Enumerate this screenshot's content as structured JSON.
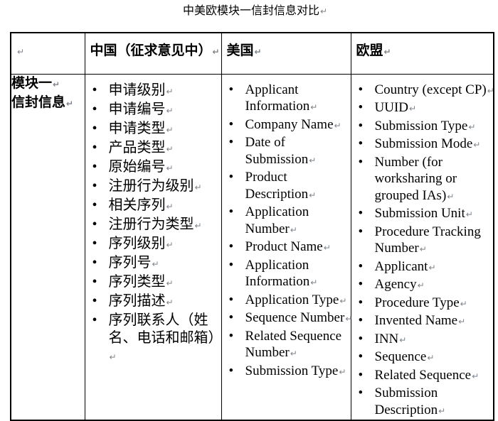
{
  "title": "中美欧模块一信封信息对比",
  "paragraph_mark": "↵",
  "table": {
    "corner": "",
    "row_header": {
      "lines": [
        "模块一",
        "信封信息"
      ]
    },
    "columns": [
      {
        "id": "china",
        "header": "中国（征求意见中）",
        "items": [
          "申请级别",
          "申请编号",
          "申请类型",
          "产品类型",
          "原始编号",
          "注册行为级别",
          "相关序列",
          "注册行为类型",
          "序列级别",
          "序列号",
          "序列类型",
          "序列描述",
          "序列联系人（姓名、电话和邮箱）"
        ]
      },
      {
        "id": "us",
        "header": "美国",
        "items": [
          "Applicant Information",
          "Company Name",
          "Date of Submission",
          "Product Description",
          "Application Number",
          "Product Name",
          "Application Information",
          "Application Type",
          "Sequence Number",
          "Related Sequence Number",
          "Submission Type"
        ]
      },
      {
        "id": "eu",
        "header": "欧盟",
        "items": [
          "Country (except CP)",
          "UUID",
          "Submission Type",
          "Submission Mode",
          "Number (for worksharing or grouped IAs)",
          "Submission Unit",
          "Procedure Tracking Number",
          "Applicant",
          "Agency",
          "Procedure Type",
          "Invented Name",
          "INN",
          "Sequence",
          "Related Sequence",
          "Submission Description"
        ]
      }
    ]
  }
}
